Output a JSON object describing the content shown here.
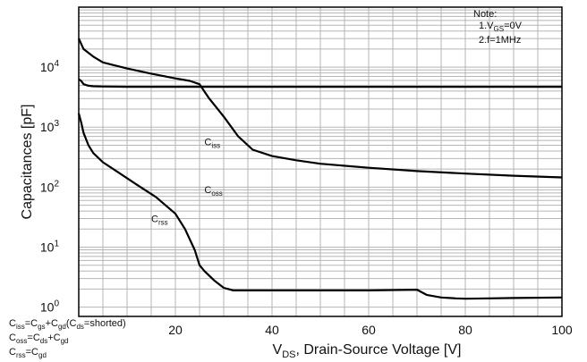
{
  "chart_data": {
    "type": "line",
    "xlabel": "V_DS, Drain-Source Voltage [V]",
    "ylabel": "Capacitances [pF]",
    "xlim": [
      0,
      100
    ],
    "x_ticks": [
      20,
      40,
      60,
      80,
      100
    ],
    "x_tick_labels": [
      "20",
      "40",
      "60",
      "80",
      "100"
    ],
    "ylim_log": [
      1,
      100000
    ],
    "y_ticks": [
      1,
      10,
      100,
      1000,
      10000
    ],
    "y_tick_labels": [
      "10^0",
      "10^1",
      "10^2",
      "10^3",
      "10^4"
    ],
    "y_scale": "log",
    "grid": true,
    "series": [
      {
        "name": "Ciss",
        "x": [
          0,
          1,
          3,
          5,
          10,
          15,
          20,
          23,
          25,
          27,
          30,
          33,
          36,
          40,
          45,
          50,
          60,
          70,
          80,
          90,
          100
        ],
        "values": [
          30000,
          20000,
          15000,
          12000,
          9500,
          7800,
          6500,
          5900,
          5200,
          3000,
          1500,
          700,
          420,
          330,
          280,
          245,
          210,
          185,
          168,
          155,
          145
        ]
      },
      {
        "name": "Crss",
        "x": [
          0,
          0.5,
          1,
          2,
          3,
          5,
          10,
          20,
          25,
          30,
          40,
          50,
          60,
          70,
          80,
          90,
          100
        ],
        "values": [
          6300,
          5900,
          5200,
          4900,
          4800,
          4750,
          4700,
          4700,
          4700,
          4700,
          4700,
          4700,
          4700,
          4700,
          4700,
          4700,
          4700
        ]
      },
      {
        "name": "Coss",
        "x": [
          0,
          0.5,
          1,
          2,
          3,
          5,
          8,
          12,
          16,
          20,
          22,
          24,
          25,
          26,
          28,
          30,
          32,
          35,
          40,
          50,
          60,
          70,
          72,
          75,
          78,
          80,
          85,
          90,
          100
        ],
        "values": [
          1700,
          1200,
          800,
          500,
          370,
          260,
          180,
          110,
          68,
          36,
          20,
          9,
          5,
          4,
          2.8,
          2.1,
          1.9,
          1.9,
          1.9,
          1.9,
          1.9,
          1.95,
          1.6,
          1.45,
          1.4,
          1.38,
          1.4,
          1.42,
          1.45
        ]
      }
    ],
    "curve_labels": [
      {
        "text": "C",
        "sub": "iss",
        "x": 26,
        "y": 500
      },
      {
        "text": "C",
        "sub": "oss",
        "x": 26,
        "y": 80
      },
      {
        "text": "C",
        "sub": "rss",
        "x": 15,
        "y": 26
      }
    ],
    "notes": {
      "title": "Note:",
      "line1": "1.V",
      "line1_sub": "GS",
      "line1_rest": "=0V",
      "line2": "2.f=1MHz"
    },
    "formulas": [
      {
        "a": "C",
        "a_sub": "iss",
        "b": "=C",
        "b_sub": "gs",
        "c": "+C",
        "c_sub": "gd",
        "d": "(C",
        "d_sub": "ds",
        "e": "=shorted)"
      },
      {
        "a": "C",
        "a_sub": "oss",
        "b": "=C",
        "b_sub": "ds",
        "c": "+C",
        "c_sub": "gd",
        "d": "",
        "d_sub": "",
        "e": ""
      },
      {
        "a": "C",
        "a_sub": "rss",
        "b": "=C",
        "b_sub": "gd",
        "c": "",
        "c_sub": "",
        "d": "",
        "d_sub": "",
        "e": ""
      }
    ],
    "axis_x_label_parts": {
      "v": "V",
      "sub": "DS",
      "rest": ", Drain-Source Voltage [V]"
    }
  }
}
